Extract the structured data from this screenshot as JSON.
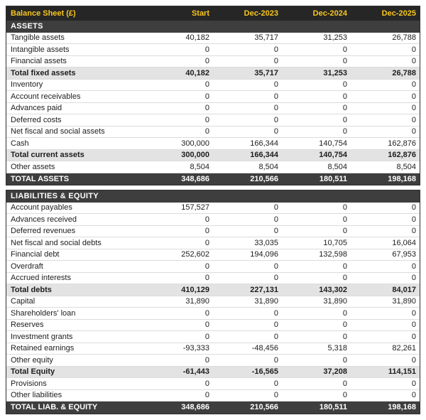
{
  "table": {
    "title": "Balance Sheet (£)",
    "columns": [
      "Start",
      "Dec-2023",
      "Dec-2024",
      "Dec-2025"
    ],
    "colors": {
      "accent_yellow": "#F8C61D",
      "header_bg": "#262626",
      "section_bg": "#3E3E3E",
      "subtotal_bg": "#E3E3E3",
      "row_border": "#DCDCDC"
    },
    "sections": [
      {
        "name": "ASSETS",
        "rows": [
          {
            "label": "Tangible assets",
            "style": "item",
            "values": [
              "40,182",
              "35,717",
              "31,253",
              "26,788"
            ]
          },
          {
            "label": "Intangible assets",
            "style": "item",
            "values": [
              "0",
              "0",
              "0",
              "0"
            ]
          },
          {
            "label": "Financial assets",
            "style": "item",
            "values": [
              "0",
              "0",
              "0",
              "0"
            ]
          },
          {
            "label": "Total fixed assets",
            "style": "subtotal",
            "values": [
              "40,182",
              "35,717",
              "31,253",
              "26,788"
            ]
          },
          {
            "label": "Inventory",
            "style": "item",
            "values": [
              "0",
              "0",
              "0",
              "0"
            ]
          },
          {
            "label": "Account receivables",
            "style": "item",
            "values": [
              "0",
              "0",
              "0",
              "0"
            ]
          },
          {
            "label": "Advances paid",
            "style": "item",
            "values": [
              "0",
              "0",
              "0",
              "0"
            ]
          },
          {
            "label": "Deferred costs",
            "style": "item",
            "values": [
              "0",
              "0",
              "0",
              "0"
            ]
          },
          {
            "label": "Net fiscal and social assets",
            "style": "item",
            "values": [
              "0",
              "0",
              "0",
              "0"
            ]
          },
          {
            "label": "Cash",
            "style": "item",
            "values": [
              "300,000",
              "166,344",
              "140,754",
              "162,876"
            ]
          },
          {
            "label": "Total current assets",
            "style": "subtotal",
            "values": [
              "300,000",
              "166,344",
              "140,754",
              "162,876"
            ]
          },
          {
            "label": "Other assets",
            "style": "item",
            "values": [
              "8,504",
              "8,504",
              "8,504",
              "8,504"
            ]
          }
        ],
        "total": {
          "label": "TOTAL ASSETS",
          "values": [
            "348,686",
            "210,566",
            "180,511",
            "198,168"
          ]
        }
      },
      {
        "name": "LIABILITIES & EQUITY",
        "rows": [
          {
            "label": "Account payables",
            "style": "item",
            "values": [
              "157,527",
              "0",
              "0",
              "0"
            ]
          },
          {
            "label": "Advances received",
            "style": "item",
            "values": [
              "0",
              "0",
              "0",
              "0"
            ]
          },
          {
            "label": "Deferred revenues",
            "style": "item",
            "values": [
              "0",
              "0",
              "0",
              "0"
            ]
          },
          {
            "label": "Net fiscal and social debts",
            "style": "item",
            "values": [
              "0",
              "33,035",
              "10,705",
              "16,064"
            ]
          },
          {
            "label": "Financial debt",
            "style": "item",
            "values": [
              "252,602",
              "194,096",
              "132,598",
              "67,953"
            ]
          },
          {
            "label": "Overdraft",
            "style": "item",
            "values": [
              "0",
              "0",
              "0",
              "0"
            ]
          },
          {
            "label": "Accrued interests",
            "style": "item",
            "values": [
              "0",
              "0",
              "0",
              "0"
            ]
          },
          {
            "label": "Total debts",
            "style": "subtotal",
            "values": [
              "410,129",
              "227,131",
              "143,302",
              "84,017"
            ]
          },
          {
            "label": "Capital",
            "style": "item",
            "values": [
              "31,890",
              "31,890",
              "31,890",
              "31,890"
            ]
          },
          {
            "label": "Shareholders' loan",
            "style": "item",
            "values": [
              "0",
              "0",
              "0",
              "0"
            ]
          },
          {
            "label": "Reserves",
            "style": "item",
            "values": [
              "0",
              "0",
              "0",
              "0"
            ]
          },
          {
            "label": "Investment grants",
            "style": "item",
            "values": [
              "0",
              "0",
              "0",
              "0"
            ]
          },
          {
            "label": "Retained earnings",
            "style": "item",
            "values": [
              "-93,333",
              "-48,456",
              "5,318",
              "82,261"
            ]
          },
          {
            "label": "Other equity",
            "style": "item",
            "values": [
              "0",
              "0",
              "0",
              "0"
            ]
          },
          {
            "label": "Total Equity",
            "style": "subtotal",
            "values": [
              "-61,443",
              "-16,565",
              "37,208",
              "114,151"
            ]
          },
          {
            "label": "Provisions",
            "style": "item",
            "values": [
              "0",
              "0",
              "0",
              "0"
            ]
          },
          {
            "label": "Other liabilities",
            "style": "item",
            "values": [
              "0",
              "0",
              "0",
              "0"
            ]
          }
        ],
        "total": {
          "label": "TOTAL LIAB. & EQUITY",
          "values": [
            "348,686",
            "210,566",
            "180,511",
            "198,168"
          ]
        }
      }
    ]
  }
}
